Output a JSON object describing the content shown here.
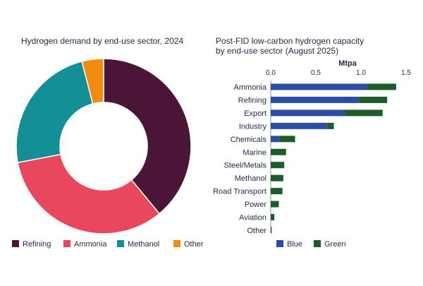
{
  "chart_data": [
    {
      "type": "pie",
      "title": "Hydrogen demand by end-use sector, 2024",
      "categories": [
        "Refining",
        "Ammonia",
        "Methanol",
        "Other"
      ],
      "values": [
        39,
        33,
        24,
        4
      ],
      "colors": [
        "#4b1537",
        "#e8475d",
        "#138f95",
        "#f28b12"
      ],
      "donut": true,
      "legend": "bottom"
    },
    {
      "type": "bar",
      "orientation": "horizontal",
      "stacked": true,
      "title_lines": [
        "Post-FID low-carbon hydrogen capacity",
        "by end-use sector (August 2025)"
      ],
      "xlabel": "Mtpa",
      "xlim": [
        0,
        1.5
      ],
      "xticks": [
        0,
        0.5,
        1,
        1.5
      ],
      "xtick_labels": [
        "0.0",
        "0.5",
        "1.0",
        "1.5"
      ],
      "categories": [
        "Ammonia",
        "Refining",
        "Export",
        "Industry",
        "Chemicals",
        "Marine",
        "Steel/Metals",
        "Methanol",
        "Road Transport",
        "Power",
        "Aviation",
        "Other"
      ],
      "series": [
        {
          "name": "Blue",
          "color": "#2d4da5",
          "values": [
            1.07,
            0.98,
            0.82,
            0.63,
            0.1,
            0.0,
            0.0,
            0.0,
            0.0,
            0.0,
            0.0,
            0.0
          ]
        },
        {
          "name": "Green",
          "color": "#1f5b2a",
          "values": [
            0.32,
            0.31,
            0.42,
            0.07,
            0.17,
            0.17,
            0.15,
            0.14,
            0.13,
            0.09,
            0.04,
            0.01
          ]
        }
      ],
      "legend": "bottom-left"
    }
  ]
}
